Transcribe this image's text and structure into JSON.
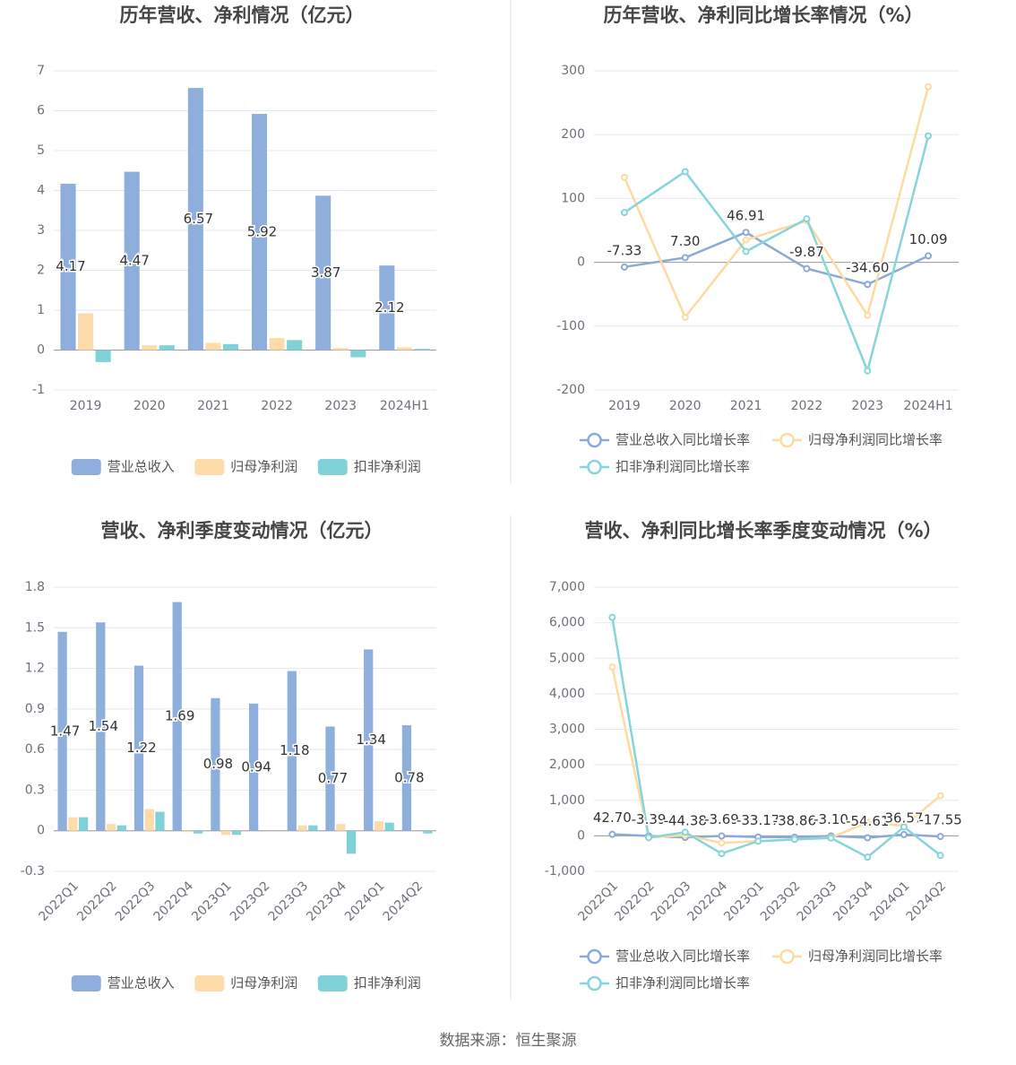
{
  "source": "数据来源：恒生聚源",
  "chart_data": [
    {
      "type": "bar",
      "title": "历年营收、净利情况（亿元）",
      "categories": [
        "2019",
        "2020",
        "2021",
        "2022",
        "2023",
        "2024H1"
      ],
      "series": [
        {
          "name": "营业总收入",
          "color": "#8eaedb",
          "values": [
            4.17,
            4.47,
            6.57,
            5.92,
            3.87,
            2.12
          ],
          "data_labels": true
        },
        {
          "name": "归母净利润",
          "color": "#fddca9",
          "values": [
            0.92,
            0.12,
            0.18,
            0.3,
            0.05,
            0.07
          ]
        },
        {
          "name": "扣非净利润",
          "color": "#7fd3d8",
          "values": [
            -0.3,
            0.12,
            0.15,
            0.25,
            -0.18,
            0.03
          ]
        }
      ],
      "ylim": [
        -1,
        7
      ],
      "yticks": [
        -1,
        0,
        1,
        2,
        3,
        4,
        5,
        6,
        7
      ],
      "grid": true
    },
    {
      "type": "line",
      "title": "历年营收、净利同比增长率情况（%）",
      "categories": [
        "2019",
        "2020",
        "2021",
        "2022",
        "2023",
        "2024H1"
      ],
      "series": [
        {
          "name": "营业总收入同比增长率",
          "color": "#8ca9d8",
          "values": [
            -7.33,
            7.3,
            46.91,
            -9.87,
            -34.6,
            10.09
          ],
          "value_labels": [
            "-7.33",
            "7.30",
            "46.91",
            "-9.87",
            "-34.60",
            "10.09"
          ],
          "data_labels": true
        },
        {
          "name": "归母净利润同比增长率",
          "color": "#fddba0",
          "values": [
            133,
            -86,
            35,
            65,
            -83,
            275
          ]
        },
        {
          "name": "扣非净利润同比增长率",
          "color": "#86d5d9",
          "values": [
            78,
            142,
            17,
            68,
            -170,
            198
          ]
        }
      ],
      "ylim": [
        -200,
        300
      ],
      "yticks": [
        -200,
        -100,
        0,
        100,
        200,
        300
      ],
      "grid": true
    },
    {
      "type": "bar",
      "title": "营收、净利季度变动情况（亿元）",
      "categories": [
        "2022Q1",
        "2022Q2",
        "2022Q3",
        "2022Q4",
        "2023Q1",
        "2023Q2",
        "2023Q3",
        "2023Q4",
        "2024Q1",
        "2024Q2"
      ],
      "series": [
        {
          "name": "营业总收入",
          "color": "#8eaedb",
          "values": [
            1.47,
            1.54,
            1.22,
            1.69,
            0.98,
            0.94,
            1.18,
            0.77,
            1.34,
            0.78
          ],
          "data_labels": true
        },
        {
          "name": "归母净利润",
          "color": "#fddca9",
          "values": [
            0.1,
            0.05,
            0.16,
            -0.01,
            -0.03,
            0.0,
            0.04,
            0.05,
            0.07,
            0.0
          ]
        },
        {
          "name": "扣非净利润",
          "color": "#7fd3d8",
          "values": [
            0.1,
            0.04,
            0.14,
            -0.02,
            -0.03,
            0.0,
            0.04,
            -0.17,
            0.06,
            -0.02
          ]
        }
      ],
      "ylim": [
        -0.3,
        1.8
      ],
      "yticks": [
        -0.3,
        0,
        0.3,
        0.6,
        0.9,
        1.2,
        1.5,
        1.8
      ],
      "grid": true
    },
    {
      "type": "line",
      "title": "营收、净利同比增长率季度变动情况（%）",
      "categories": [
        "2022Q1",
        "2022Q2",
        "2022Q3",
        "2022Q4",
        "2023Q1",
        "2023Q2",
        "2023Q3",
        "2023Q4",
        "2024Q1",
        "2024Q2"
      ],
      "series": [
        {
          "name": "营业总收入同比增长率",
          "color": "#8ca9d8",
          "values": [
            42.7,
            -3.39,
            -44.38,
            -3.69,
            -33.17,
            -38.86,
            -3.1,
            -54.61,
            36.57,
            -17.55
          ],
          "value_labels": [
            "42.70",
            "-3.39",
            "-44.38",
            "-3.69",
            "-33.17",
            "-38.86",
            "-3.10",
            "-54.61",
            "36.57",
            "-17.55"
          ],
          "data_labels": true
        },
        {
          "name": "归母净利润同比增长率",
          "color": "#fddba0",
          "values": [
            4750,
            -50,
            20,
            -200,
            -150,
            -100,
            -50,
            380,
            280,
            1130
          ]
        },
        {
          "name": "扣非净利润同比增长率",
          "color": "#86d5d9",
          "values": [
            6150,
            -50,
            100,
            -500,
            -150,
            -100,
            -60,
            -600,
            250,
            -550
          ]
        }
      ],
      "ylim": [
        -1000,
        7000
      ],
      "yticks": [
        {
          "value": -1000,
          "label": "-1,000"
        },
        0,
        {
          "value": 1000,
          "label": "1,000"
        },
        {
          "value": 2000,
          "label": "2,000"
        },
        {
          "value": 3000,
          "label": "3,000"
        },
        {
          "value": 4000,
          "label": "4,000"
        },
        {
          "value": 5000,
          "label": "5,000"
        },
        {
          "value": 6000,
          "label": "6,000"
        },
        {
          "value": 7000,
          "label": "7,000"
        }
      ],
      "grid": true
    }
  ]
}
